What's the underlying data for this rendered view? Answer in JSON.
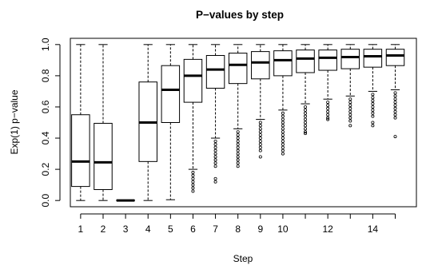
{
  "chart_data": {
    "type": "boxplot",
    "title": "P−values by step",
    "xlabel": "Step",
    "ylabel": "Exp(1) p−value",
    "ylim": [
      -0.04,
      1.04
    ],
    "y_ticks": [
      0.0,
      0.2,
      0.4,
      0.6,
      0.8,
      1.0
    ],
    "y_tick_labels": [
      "0.0",
      "0.2",
      "0.4",
      "0.6",
      "0.8",
      "1.0"
    ],
    "x_ticks": [
      1,
      2,
      3,
      4,
      5,
      6,
      7,
      8,
      9,
      10,
      12,
      14
    ],
    "x_tick_labels": [
      "1",
      "2",
      "3",
      "4",
      "5",
      "6",
      "7",
      "8",
      "9",
      "10",
      "12",
      "14"
    ],
    "grid": false,
    "boxes": [
      {
        "step": 1,
        "whisker_low": 0.0,
        "q1": 0.09,
        "median": 0.25,
        "q3": 0.55,
        "whisker_high": 1.0,
        "outliers": []
      },
      {
        "step": 2,
        "whisker_low": 0.0,
        "q1": 0.07,
        "median": 0.245,
        "q3": 0.495,
        "whisker_high": 1.0,
        "outliers": []
      },
      {
        "step": 3,
        "whisker_low": 0.0,
        "q1": 0.0,
        "median": 0.0,
        "q3": 0.002,
        "whisker_high": 0.003,
        "outliers": []
      },
      {
        "step": 4,
        "whisker_low": 0.0,
        "q1": 0.25,
        "median": 0.5,
        "q3": 0.76,
        "whisker_high": 1.0,
        "outliers": []
      },
      {
        "step": 5,
        "whisker_low": 0.005,
        "q1": 0.5,
        "median": 0.71,
        "q3": 0.865,
        "whisker_high": 1.0,
        "outliers": []
      },
      {
        "step": 6,
        "whisker_low": 0.2,
        "q1": 0.63,
        "median": 0.8,
        "q3": 0.905,
        "whisker_high": 1.0,
        "outliers": [
          0.18,
          0.16,
          0.14,
          0.12,
          0.1,
          0.08,
          0.06
        ]
      },
      {
        "step": 7,
        "whisker_low": 0.4,
        "q1": 0.72,
        "median": 0.84,
        "q3": 0.93,
        "whisker_high": 1.0,
        "outliers": [
          0.38,
          0.36,
          0.34,
          0.32,
          0.3,
          0.28,
          0.26,
          0.24,
          0.22,
          0.14,
          0.12
        ]
      },
      {
        "step": 8,
        "whisker_low": 0.46,
        "q1": 0.75,
        "median": 0.87,
        "q3": 0.945,
        "whisker_high": 1.0,
        "outliers": [
          0.44,
          0.42,
          0.4,
          0.38,
          0.36,
          0.34,
          0.32,
          0.3,
          0.28,
          0.26,
          0.24,
          0.22
        ]
      },
      {
        "step": 9,
        "whisker_low": 0.52,
        "q1": 0.78,
        "median": 0.885,
        "q3": 0.955,
        "whisker_high": 1.0,
        "outliers": [
          0.5,
          0.48,
          0.46,
          0.44,
          0.42,
          0.4,
          0.38,
          0.36,
          0.34,
          0.32,
          0.28
        ]
      },
      {
        "step": 10,
        "whisker_low": 0.58,
        "q1": 0.8,
        "median": 0.9,
        "q3": 0.96,
        "whisker_high": 1.0,
        "outliers": [
          0.56,
          0.54,
          0.52,
          0.5,
          0.48,
          0.46,
          0.44,
          0.42,
          0.4,
          0.38,
          0.36,
          0.34,
          0.32,
          0.3
        ]
      },
      {
        "step": 11,
        "whisker_low": 0.62,
        "q1": 0.82,
        "median": 0.91,
        "q3": 0.965,
        "whisker_high": 1.0,
        "outliers": [
          0.6,
          0.58,
          0.56,
          0.54,
          0.52,
          0.5,
          0.48,
          0.46,
          0.44,
          0.43
        ]
      },
      {
        "step": 12,
        "whisker_low": 0.65,
        "q1": 0.835,
        "median": 0.915,
        "q3": 0.965,
        "whisker_high": 1.0,
        "outliers": [
          0.63,
          0.61,
          0.59,
          0.57,
          0.55,
          0.53,
          0.52
        ]
      },
      {
        "step": 13,
        "whisker_low": 0.67,
        "q1": 0.845,
        "median": 0.92,
        "q3": 0.97,
        "whisker_high": 1.0,
        "outliers": [
          0.65,
          0.63,
          0.61,
          0.59,
          0.57,
          0.55,
          0.53,
          0.51,
          0.48
        ]
      },
      {
        "step": 14,
        "whisker_low": 0.7,
        "q1": 0.855,
        "median": 0.925,
        "q3": 0.97,
        "whisker_high": 1.0,
        "outliers": [
          0.68,
          0.66,
          0.64,
          0.62,
          0.6,
          0.58,
          0.56,
          0.54,
          0.5,
          0.48
        ]
      },
      {
        "step": 15,
        "whisker_low": 0.71,
        "q1": 0.865,
        "median": 0.93,
        "q3": 0.97,
        "whisker_high": 1.0,
        "outliers": [
          0.69,
          0.67,
          0.65,
          0.63,
          0.61,
          0.59,
          0.57,
          0.55,
          0.53,
          0.41
        ]
      }
    ]
  }
}
